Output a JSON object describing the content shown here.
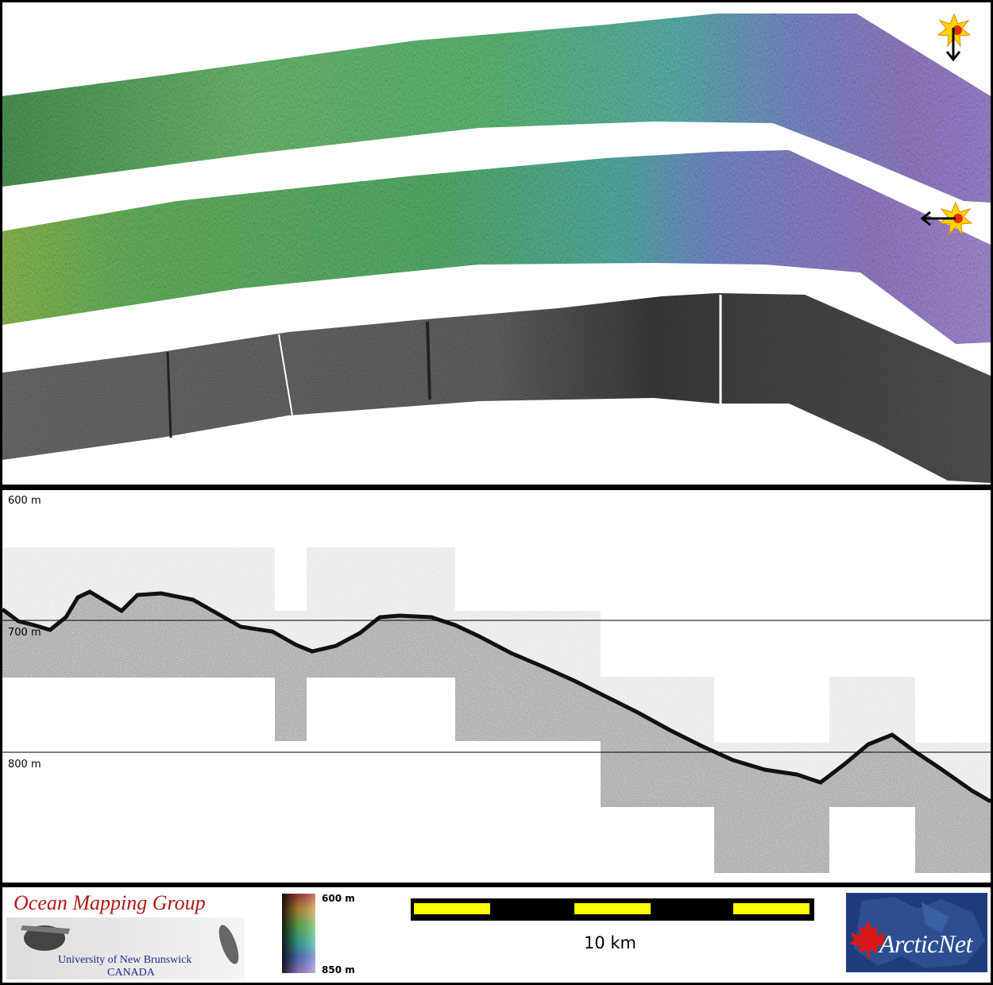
{
  "profile": {
    "depth_labels": [
      "600 m",
      "700 m",
      "800 m"
    ]
  },
  "legend": {
    "org_name": "Ocean Mapping Group",
    "university": "University of New Brunswick",
    "country": "CANADA",
    "colorbar_top": "600 m",
    "colorbar_bottom": "850 m",
    "scale_label": "10 km",
    "partner_logo": "ArcticNet"
  },
  "colors": {
    "scale_yellow": "#ffff00",
    "omg_red": "#b01818",
    "omg_blue": "#1d2a8a",
    "arcticnet_blue": "#1c3c7e"
  },
  "icons": [
    "sun-icon",
    "arrow-down-icon",
    "arrow-left-icon",
    "maple-leaf-icon"
  ]
}
